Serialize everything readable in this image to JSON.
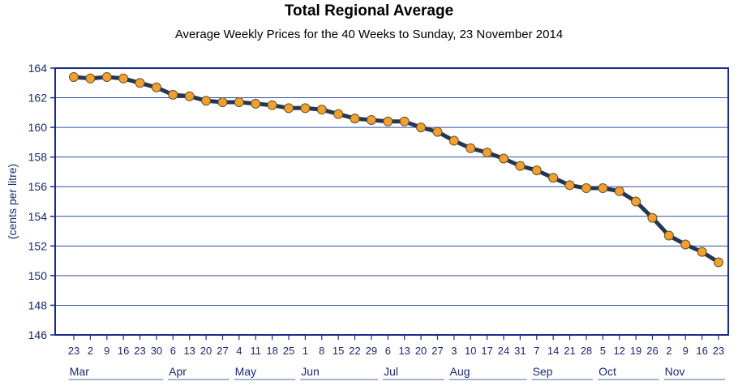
{
  "chart_data": {
    "type": "line",
    "title": "Total Regional Average",
    "subtitle": "Average Weekly Prices for the 40 Weeks to Sunday, 23 November 2014",
    "ylabel": "(cents per litre)",
    "ylim": [
      146,
      164
    ],
    "yticks": [
      146,
      148,
      150,
      152,
      154,
      156,
      158,
      160,
      162,
      164
    ],
    "grid": true,
    "x": [
      "23",
      "2",
      "9",
      "16",
      "23",
      "30",
      "6",
      "13",
      "20",
      "27",
      "4",
      "11",
      "18",
      "25",
      "1",
      "8",
      "15",
      "22",
      "29",
      "6",
      "13",
      "20",
      "27",
      "3",
      "10",
      "17",
      "24",
      "31",
      "7",
      "14",
      "21",
      "28",
      "5",
      "12",
      "19",
      "26",
      "2",
      "9",
      "16",
      "23"
    ],
    "months": [
      {
        "label": "Mar",
        "start": 0,
        "end": 5
      },
      {
        "label": "Apr",
        "start": 6,
        "end": 9
      },
      {
        "label": "May",
        "start": 10,
        "end": 13
      },
      {
        "label": "Jun",
        "start": 14,
        "end": 18
      },
      {
        "label": "Jul",
        "start": 19,
        "end": 22
      },
      {
        "label": "Aug",
        "start": 23,
        "end": 27
      },
      {
        "label": "Sep",
        "start": 28,
        "end": 31
      },
      {
        "label": "Oct",
        "start": 32,
        "end": 35
      },
      {
        "label": "Nov",
        "start": 36,
        "end": 39
      }
    ],
    "series": [
      {
        "values": [
          163.4,
          163.3,
          163.4,
          163.3,
          163.0,
          162.7,
          162.2,
          162.1,
          161.8,
          161.7,
          161.7,
          161.6,
          161.5,
          161.3,
          161.3,
          161.2,
          160.9,
          160.6,
          160.5,
          160.4,
          160.4,
          160.0,
          159.7,
          159.1,
          158.6,
          158.3,
          157.9,
          157.4,
          157.1,
          156.6,
          156.1,
          155.9,
          155.9,
          155.7,
          155.0,
          153.9,
          152.7,
          152.1,
          151.6,
          150.9
        ],
        "color": "#233754",
        "marker_color": "#f0a030"
      }
    ]
  }
}
